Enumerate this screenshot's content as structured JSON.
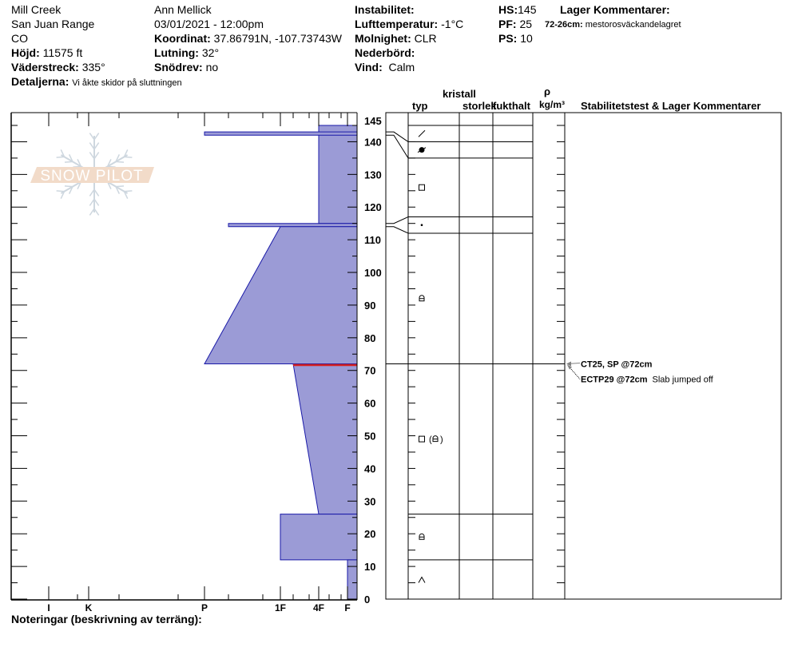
{
  "header": {
    "location": "Mill Creek",
    "range": "San Juan Range",
    "state": "CO",
    "elevation": {
      "label": "Höjd:",
      "value": "11575 ft"
    },
    "aspect": {
      "label": "Väderstreck:",
      "value": "335°"
    },
    "details": {
      "label": "Detaljerna:",
      "value": "Vi åkte skidor på sluttningen"
    },
    "observer": "Ann Mellick",
    "datetime": "03/01/2021 - 12:00pm",
    "coordinates": {
      "label": "Koordinat:",
      "value": "37.86791N, -107.73743W"
    },
    "slope": {
      "label": "Lutning:",
      "value": "32°"
    },
    "wind_loading": {
      "label": "Snödrev:",
      "value": "no"
    },
    "instability": {
      "label": "Instabilitet:",
      "value": ""
    },
    "air_temp": {
      "label": "Lufttemperatur:",
      "value": "-1°C"
    },
    "sky": {
      "label": "Molnighet:",
      "value": "CLR"
    },
    "precip": {
      "label": "Nederbörd:",
      "value": ""
    },
    "wind": {
      "label": "Vind:",
      "value": "Calm"
    },
    "hs": {
      "label": "HS:",
      "value": "145"
    },
    "pf": {
      "label": "PF:",
      "value": "25"
    },
    "ps": {
      "label": "PS:",
      "value": "10"
    },
    "layer_comments_title": "Lager Kommentarer:",
    "layer_comment": {
      "range": "72-26cm:",
      "text": "mestorosväckandelagret"
    }
  },
  "columns": {
    "crystal": "kristall",
    "type": "typ",
    "size": "storlek",
    "moisture": "fukthalt",
    "rho": "ρ",
    "density_unit": "kg/m³",
    "comments": "Stabilitetstest & Lager Kommentarer"
  },
  "notes_label": "Noteringar (beskrivning av terräng):",
  "logo_text": "SNOW PILOT",
  "profile": {
    "depth_axis": {
      "min": 0,
      "max": 145,
      "labels": [
        "0",
        "10",
        "20",
        "30",
        "40",
        "50",
        "60",
        "70",
        "80",
        "90",
        "100",
        "110",
        "120",
        "130",
        "140",
        "145"
      ]
    },
    "hardness_axis": [
      "I",
      "K",
      "P",
      "1F",
      "4F",
      "F"
    ],
    "hardness_layers": [
      {
        "top": 145,
        "bottom": 115,
        "hardness_top": "4F",
        "hardness_bottom": "4F"
      },
      {
        "top": 143,
        "bottom": 142,
        "hardness_top": "P",
        "hardness_bottom": "P"
      },
      {
        "top": 115,
        "bottom": 114,
        "hardness_top": "P-",
        "hardness_bottom": "P-"
      },
      {
        "top": 114,
        "bottom": 72,
        "hardness_top": "1F",
        "hardness_bottom": "P"
      },
      {
        "top": 72,
        "bottom": 26,
        "hardness_top": "1F-",
        "hardness_bottom": "4F"
      },
      {
        "top": 26,
        "bottom": 12,
        "hardness_top": "1F",
        "hardness_bottom": "1F"
      },
      {
        "top": 12,
        "bottom": 0,
        "hardness_top": "F",
        "hardness_bottom": "F"
      }
    ],
    "failure_layer_cm": 72,
    "grain_layers": [
      {
        "top": 145,
        "bottom": 140,
        "grain": "decomposing-fragments-icon",
        "label": ""
      },
      {
        "top": 140,
        "bottom": 135,
        "grain": "melt-freeze-icon",
        "label": ""
      },
      {
        "top": 135,
        "bottom": 117,
        "grain": "faceted-crystals-icon",
        "label": ""
      },
      {
        "top": 117,
        "bottom": 112,
        "grain": "small-dot-icon",
        "label": ""
      },
      {
        "top": 112,
        "bottom": 72,
        "grain": "rounding-facets-icon",
        "label": ""
      },
      {
        "top": 72,
        "bottom": 26,
        "grain": "faceted-with-rounding-icon",
        "label": ""
      },
      {
        "top": 26,
        "bottom": 12,
        "grain": "rounding-facets-icon",
        "label": ""
      },
      {
        "top": 12,
        "bottom": 0,
        "grain": "depth-hoar-icon",
        "label": ""
      }
    ],
    "stability_tests": [
      {
        "code": "CT25, SP @72cm",
        "comment": "",
        "depth": 72
      },
      {
        "code": "ECTP29 @72cm",
        "comment": "Slab jumped off",
        "depth": 72
      }
    ],
    "colors": {
      "fill": "#9b9bd6",
      "outline": "#1a1aa8",
      "failure": "#d42020",
      "arrow": "#808080"
    }
  }
}
